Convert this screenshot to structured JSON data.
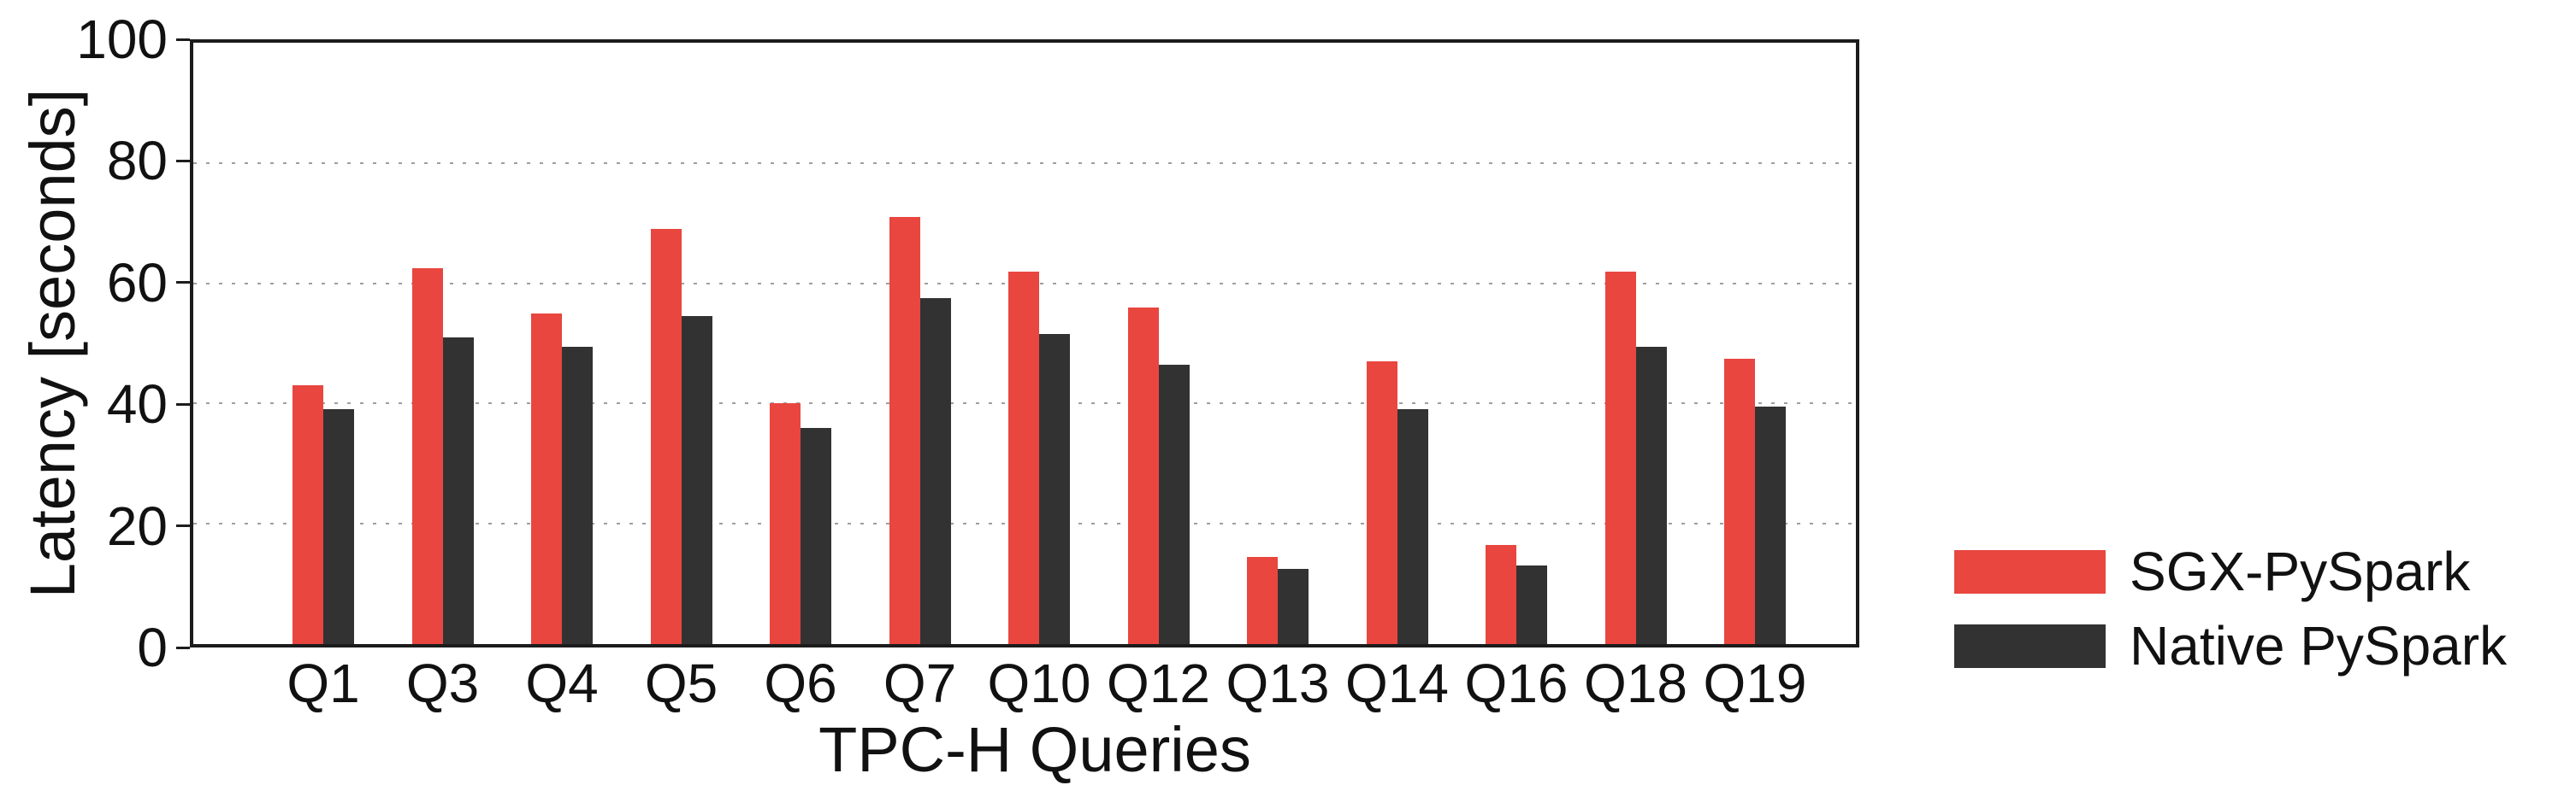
{
  "chart_data": {
    "type": "bar",
    "title": "",
    "xlabel": "TPC-H Queries",
    "ylabel": "Latency [seconds]",
    "categories": [
      "Q1",
      "Q3",
      "Q4",
      "Q5",
      "Q6",
      "Q7",
      "Q10",
      "Q12",
      "Q13",
      "Q14",
      "Q16",
      "Q18",
      "Q19"
    ],
    "series": [
      {
        "name": "SGX-PySpark",
        "color": "#e8463f",
        "values": [
          43,
          62.5,
          55,
          69,
          40,
          71,
          62,
          56,
          14.5,
          47,
          16.5,
          62,
          47.5
        ]
      },
      {
        "name": "Native PySpark",
        "color": "#333233",
        "values": [
          39,
          51,
          49.5,
          54.5,
          36,
          57.5,
          51.5,
          46.5,
          12.5,
          39,
          13,
          49.5,
          39.5
        ]
      }
    ],
    "ylim": [
      0,
      100
    ],
    "yticks": [
      0,
      20,
      40,
      60,
      80,
      100
    ],
    "grid": "horizontal dotted lines at 20, 40, 60, 80",
    "legend_position": "outside right"
  },
  "colors": {
    "background": "#ffffff",
    "spine": "#1c1c1c",
    "gridline": "#9e9e9e",
    "text": "#111111"
  }
}
